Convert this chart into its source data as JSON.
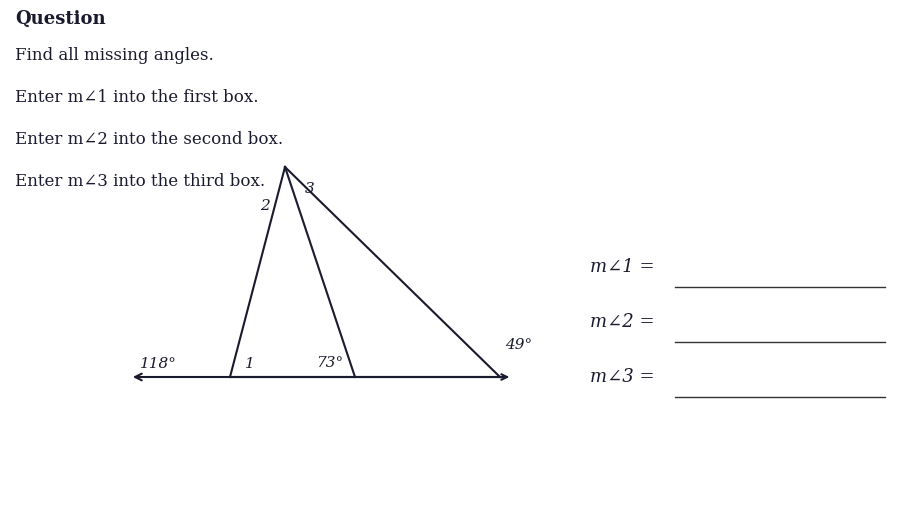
{
  "bg_color": "#ffffff",
  "title_text": "Question",
  "instruction_lines": [
    "Find all missing angles.",
    "Enter m∠1 into the first box.",
    "Enter m∠2 into the second box.",
    "Enter m∠3 into the third box."
  ],
  "angle_labels_right": [
    "m∠1 =",
    "m∠2 =",
    "m∠3 ="
  ],
  "angle_118": "118°",
  "angle_1_label": "1",
  "angle_73": "73°",
  "angle_49": "49°",
  "angle_2_label": "2",
  "angle_3_label": "3",
  "text_color": "#1a1a2e",
  "line_color": "#1a1a2e",
  "font_size_title": 13,
  "font_size_text": 12,
  "font_size_angle": 11,
  "font_size_right": 13
}
